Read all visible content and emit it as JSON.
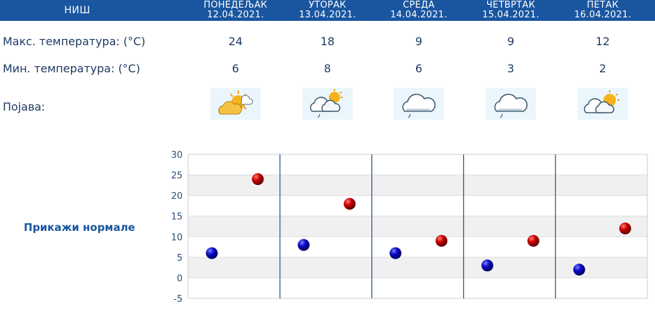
{
  "header": {
    "city": "НИШ",
    "days": [
      {
        "name": "ПОНЕДЕЉАК",
        "date": "12.04.2021."
      },
      {
        "name": "УТОРАК",
        "date": "13.04.2021."
      },
      {
        "name": "СРЕДА",
        "date": "14.04.2021."
      },
      {
        "name": "ЧЕТВРТАК",
        "date": "15.04.2021."
      },
      {
        "name": "ПЕТАК",
        "date": "16.04.2021."
      }
    ]
  },
  "rows": {
    "max_label": "Макс. температура: (°C)",
    "min_label": "Мин. температура: (°C)",
    "phenomenon_label": "Појава:"
  },
  "forecast": {
    "max": [
      "24",
      "18",
      "9",
      "9",
      "12"
    ],
    "min": [
      "6",
      "8",
      "6",
      "3",
      "2"
    ],
    "icons": [
      "sun-cloud-icon",
      "cloud-sun-light-rain-icon",
      "cloud-light-rain-icon",
      "cloud-light-rain-icon",
      "cloud-sun-icon"
    ]
  },
  "normals_link": "Прикажи нормале",
  "colors": {
    "header_bg": "#1a56a0",
    "max_marker": "#cc0000",
    "min_marker": "#0a0ac8",
    "divider": "#1a4f8a"
  },
  "chart_data": {
    "type": "scatter",
    "categories": [
      "12.04.2021.",
      "13.04.2021.",
      "14.04.2021.",
      "15.04.2021.",
      "16.04.2021."
    ],
    "series": [
      {
        "values": [
          6,
          8,
          6,
          3,
          2
        ]
      },
      {
        "values": [
          24,
          18,
          9,
          9,
          12
        ]
      }
    ],
    "ylim": [
      -5,
      30
    ],
    "yticks": [
      "30",
      "25",
      "20",
      "15",
      "10",
      "5",
      "0",
      "-5"
    ],
    "grid": "horizontal bands"
  }
}
